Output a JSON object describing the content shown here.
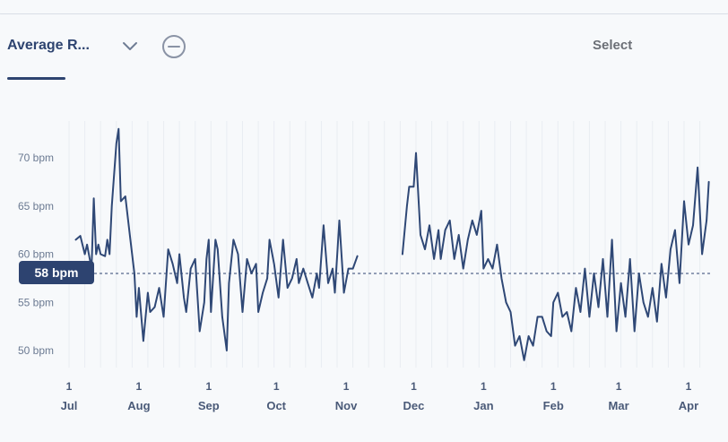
{
  "header": {
    "metric_tab_label": "Average R...",
    "select_label": "Select",
    "icons": {
      "dropdown": "chevron-down-icon",
      "remove": "minus-circle-icon"
    }
  },
  "colors": {
    "line": "#2f4876",
    "badge": "#2d4370",
    "accent": "#2e4470"
  },
  "chart_data": {
    "type": "line",
    "title": "",
    "xlabel": "",
    "ylabel": "",
    "y_ticks": [
      "50 bpm",
      "55 bpm",
      "60 bpm",
      "65 bpm",
      "70 bpm"
    ],
    "y_tick_values": [
      50,
      55,
      60,
      65,
      70
    ],
    "ylim": [
      48.5,
      74
    ],
    "x_ticks": [
      {
        "day": "1",
        "month": "Jul",
        "date": "2023-07-01"
      },
      {
        "day": "1",
        "month": "Aug",
        "date": "2023-08-01"
      },
      {
        "day": "1",
        "month": "Sep",
        "date": "2023-09-01"
      },
      {
        "day": "1",
        "month": "Oct",
        "date": "2023-10-01"
      },
      {
        "day": "1",
        "month": "Nov",
        "date": "2023-11-01"
      },
      {
        "day": "1",
        "month": "Dec",
        "date": "2023-12-01"
      },
      {
        "day": "1",
        "month": "Jan",
        "date": "2024-01-01"
      },
      {
        "day": "1",
        "month": "Feb",
        "date": "2024-02-01"
      },
      {
        "day": "1",
        "month": "Mar",
        "date": "2024-03-01"
      },
      {
        "day": "1",
        "month": "Apr",
        "date": "2024-04-01"
      }
    ],
    "xlim": [
      "2023-07-01",
      "2024-04-11"
    ],
    "reference_line": {
      "value": 58,
      "label": "58 bpm"
    },
    "grid": "vertical",
    "series": [
      {
        "segments": [
          [
            [
              "2023-07-04",
              61.5
            ],
            [
              "2023-07-06",
              61.9
            ],
            [
              "2023-07-08",
              60.0
            ],
            [
              "2023-07-09",
              61.0
            ],
            [
              "2023-07-11",
              58.5
            ],
            [
              "2023-07-12",
              65.8
            ],
            [
              "2023-07-13",
              60.0
            ],
            [
              "2023-07-14",
              61.0
            ],
            [
              "2023-07-15",
              60.0
            ],
            [
              "2023-07-17",
              59.8
            ],
            [
              "2023-07-18",
              61.5
            ],
            [
              "2023-07-19",
              60.0
            ],
            [
              "2023-07-20",
              65.0
            ],
            [
              "2023-07-22",
              71.5
            ],
            [
              "2023-07-23",
              73.0
            ],
            [
              "2023-07-24",
              65.5
            ],
            [
              "2023-07-26",
              66.0
            ],
            [
              "2023-07-28",
              62.0
            ],
            [
              "2023-07-30",
              58.0
            ],
            [
              "2023-07-31",
              53.5
            ],
            [
              "2023-08-01",
              56.5
            ],
            [
              "2023-08-03",
              51.0
            ],
            [
              "2023-08-05",
              56.0
            ],
            [
              "2023-08-06",
              54.0
            ],
            [
              "2023-08-08",
              54.5
            ],
            [
              "2023-08-10",
              56.5
            ],
            [
              "2023-08-12",
              53.5
            ],
            [
              "2023-08-14",
              60.5
            ],
            [
              "2023-08-16",
              59.0
            ],
            [
              "2023-08-18",
              57.0
            ],
            [
              "2023-08-19",
              60.0
            ],
            [
              "2023-08-21",
              55.5
            ],
            [
              "2023-08-22",
              54.0
            ],
            [
              "2023-08-24",
              58.5
            ],
            [
              "2023-08-26",
              59.5
            ],
            [
              "2023-08-28",
              52.0
            ],
            [
              "2023-08-30",
              55.0
            ],
            [
              "2023-08-31",
              59.5
            ],
            [
              "2023-09-01",
              61.5
            ],
            [
              "2023-09-02",
              54.0
            ],
            [
              "2023-09-04",
              61.5
            ],
            [
              "2023-09-05",
              60.5
            ],
            [
              "2023-09-07",
              53.5
            ],
            [
              "2023-09-09",
              50.0
            ],
            [
              "2023-09-10",
              57.0
            ],
            [
              "2023-09-12",
              61.5
            ],
            [
              "2023-09-14",
              60.0
            ],
            [
              "2023-09-16",
              54.0
            ],
            [
              "2023-09-18",
              59.5
            ],
            [
              "2023-09-20",
              58.0
            ],
            [
              "2023-09-22",
              59.0
            ],
            [
              "2023-09-23",
              54.0
            ],
            [
              "2023-09-25",
              56.0
            ],
            [
              "2023-09-27",
              57.5
            ],
            [
              "2023-09-28",
              61.5
            ],
            [
              "2023-09-30",
              59.0
            ],
            [
              "2023-10-02",
              55.5
            ],
            [
              "2023-10-04",
              61.5
            ],
            [
              "2023-10-06",
              56.5
            ],
            [
              "2023-10-08",
              57.5
            ],
            [
              "2023-10-10",
              59.5
            ],
            [
              "2023-10-11",
              57.0
            ],
            [
              "2023-10-13",
              58.5
            ],
            [
              "2023-10-15",
              57.0
            ],
            [
              "2023-10-17",
              55.5
            ],
            [
              "2023-10-19",
              58.0
            ],
            [
              "2023-10-20",
              56.5
            ],
            [
              "2023-10-22",
              63.0
            ],
            [
              "2023-10-24",
              57.0
            ],
            [
              "2023-10-26",
              58.5
            ],
            [
              "2023-10-27",
              56.0
            ],
            [
              "2023-10-29",
              63.5
            ],
            [
              "2023-10-31",
              56.0
            ],
            [
              "2023-11-02",
              58.5
            ],
            [
              "2023-11-04",
              58.5
            ],
            [
              "2023-11-06",
              59.8
            ]
          ],
          [
            [
              "2023-11-26",
              60.0
            ],
            [
              "2023-11-28",
              65.0
            ],
            [
              "2023-11-29",
              67.0
            ],
            [
              "2023-12-01",
              67.0
            ],
            [
              "2023-12-02",
              70.5
            ],
            [
              "2023-12-04",
              62.0
            ],
            [
              "2023-12-06",
              60.5
            ],
            [
              "2023-12-08",
              63.0
            ],
            [
              "2023-12-10",
              59.5
            ],
            [
              "2023-12-12",
              62.5
            ],
            [
              "2023-12-13",
              59.5
            ],
            [
              "2023-12-15",
              62.5
            ],
            [
              "2023-12-17",
              63.5
            ],
            [
              "2023-12-19",
              59.5
            ],
            [
              "2023-12-21",
              62.0
            ],
            [
              "2023-12-23",
              58.5
            ],
            [
              "2023-12-25",
              61.5
            ],
            [
              "2023-12-27",
              63.5
            ],
            [
              "2023-12-29",
              62.0
            ],
            [
              "2023-12-31",
              64.5
            ],
            [
              "2024-01-01",
              58.5
            ],
            [
              "2024-01-03",
              59.5
            ],
            [
              "2024-01-05",
              58.5
            ],
            [
              "2024-01-07",
              61.0
            ],
            [
              "2024-01-09",
              57.5
            ],
            [
              "2024-01-11",
              55.0
            ],
            [
              "2024-01-13",
              54.0
            ],
            [
              "2024-01-15",
              50.5
            ],
            [
              "2024-01-17",
              51.5
            ],
            [
              "2024-01-19",
              49.0
            ],
            [
              "2024-01-21",
              51.5
            ],
            [
              "2024-01-23",
              50.5
            ],
            [
              "2024-01-25",
              53.5
            ],
            [
              "2024-01-27",
              53.5
            ],
            [
              "2024-01-29",
              52.0
            ],
            [
              "2024-01-31",
              51.5
            ],
            [
              "2024-02-01",
              55.0
            ],
            [
              "2024-02-03",
              56.0
            ],
            [
              "2024-02-05",
              53.5
            ],
            [
              "2024-02-07",
              54.0
            ],
            [
              "2024-02-09",
              52.0
            ],
            [
              "2024-02-11",
              56.5
            ],
            [
              "2024-02-13",
              54.0
            ],
            [
              "2024-02-15",
              58.5
            ],
            [
              "2024-02-17",
              53.5
            ],
            [
              "2024-02-19",
              58.0
            ],
            [
              "2024-02-21",
              54.5
            ],
            [
              "2024-02-23",
              59.5
            ],
            [
              "2024-02-25",
              53.5
            ],
            [
              "2024-02-27",
              61.5
            ],
            [
              "2024-02-29",
              52.0
            ],
            [
              "2024-03-02",
              57.0
            ],
            [
              "2024-03-04",
              53.5
            ],
            [
              "2024-03-06",
              59.5
            ],
            [
              "2024-03-08",
              52.0
            ],
            [
              "2024-03-10",
              58.0
            ],
            [
              "2024-03-12",
              55.0
            ],
            [
              "2024-03-14",
              53.5
            ],
            [
              "2024-03-16",
              56.5
            ],
            [
              "2024-03-18",
              53.0
            ],
            [
              "2024-03-20",
              59.0
            ],
            [
              "2024-03-22",
              55.5
            ],
            [
              "2024-03-24",
              60.5
            ],
            [
              "2024-03-26",
              62.5
            ],
            [
              "2024-03-28",
              57.0
            ],
            [
              "2024-03-30",
              65.5
            ],
            [
              "2024-04-01",
              61.0
            ],
            [
              "2024-04-03",
              63.0
            ],
            [
              "2024-04-05",
              69.0
            ],
            [
              "2024-04-07",
              60.0
            ],
            [
              "2024-04-09",
              63.5
            ],
            [
              "2024-04-10",
              67.5
            ]
          ]
        ]
      }
    ]
  }
}
